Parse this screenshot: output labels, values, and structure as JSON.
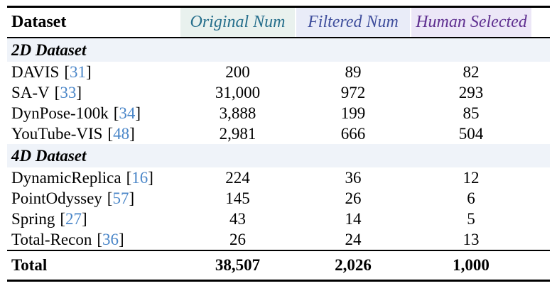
{
  "table": {
    "header": {
      "dataset_label": "Dataset",
      "columns": [
        {
          "label": "Original Num",
          "text_color": "#266f8c",
          "bg_color": "#e9f1ee"
        },
        {
          "label": "Filtered Num",
          "text_color": "#3f4e9c",
          "bg_color": "#e9ecf8"
        },
        {
          "label": "Human Selected",
          "text_color": "#5f2f90",
          "bg_color": "#ece7f7"
        }
      ]
    },
    "cite_brackets": {
      "open": "[",
      "close": "]"
    },
    "sections": [
      {
        "label": "2D Dataset",
        "rows": [
          {
            "name": "DAVIS",
            "cite": "31",
            "original": "200",
            "filtered": "89",
            "selected": "82"
          },
          {
            "name": "SA-V",
            "cite": "33",
            "original": "31,000",
            "filtered": "972",
            "selected": "293"
          },
          {
            "name": "DynPose-100k",
            "cite": "34",
            "original": "3,888",
            "filtered": "199",
            "selected": "85"
          },
          {
            "name": "YouTube-VIS",
            "cite": "48",
            "original": "2,981",
            "filtered": "666",
            "selected": "504"
          }
        ]
      },
      {
        "label": "4D Dataset",
        "rows": [
          {
            "name": "DynamicReplica",
            "cite": "16",
            "original": "224",
            "filtered": "36",
            "selected": "12"
          },
          {
            "name": "PointOdyssey",
            "cite": "57",
            "original": "145",
            "filtered": "26",
            "selected": "6"
          },
          {
            "name": "Spring",
            "cite": "27",
            "original": "43",
            "filtered": "14",
            "selected": "5"
          },
          {
            "name": "Total-Recon",
            "cite": "36",
            "original": "26",
            "filtered": "24",
            "selected": "13"
          }
        ]
      }
    ],
    "total": {
      "label": "Total",
      "original": "38,507",
      "filtered": "2,026",
      "selected": "1,000"
    },
    "accents": {
      "citation_color": "#4a86c8",
      "section_band_color": "#eff3f9",
      "rule_color": "#000000"
    }
  }
}
